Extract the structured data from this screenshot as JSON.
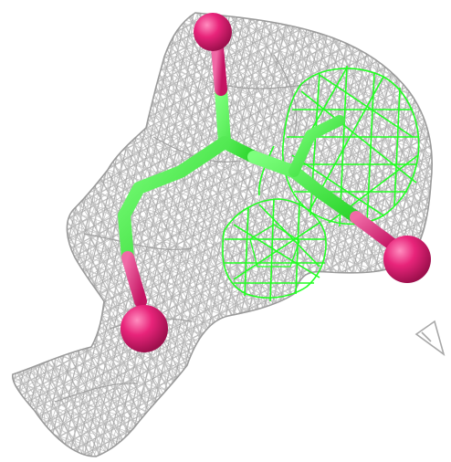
{
  "scene": {
    "kind": "molecular-density-render",
    "background_color": "#ffffff",
    "mesh_color": "#b4b4b4",
    "mesh_shadow_color": "#8e8e8e",
    "ligand_density_color": "#22ff22",
    "ligand_bond_color": "#3cf23c",
    "oxygen_atom_color": "#e8247a",
    "elements": [
      "electron-density-mesh",
      "ligand-density-mesh",
      "ligand-stick-model",
      "oxygen-atom-spheres",
      "stray-mesh-fragment"
    ]
  }
}
